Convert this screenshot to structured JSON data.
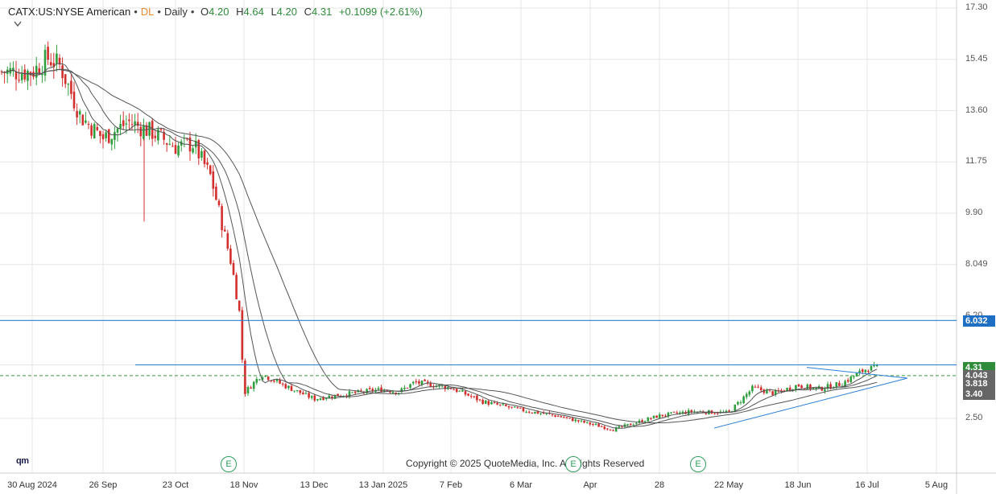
{
  "header": {
    "symbol": "CATX:US:NYSE American",
    "dl": "DL",
    "interval": "Daily",
    "open_label": "O",
    "open": "4.20",
    "high_label": "H",
    "high": "4.64",
    "low_label": "L",
    "low": "4.20",
    "close_label": "C",
    "close": "4.31",
    "change": "+0.1099 (+2.61%)"
  },
  "footer": {
    "copyright": "Copyright © 2025 QuoteMedia, Inc. All Rights Reserved",
    "logo": "qm",
    "earnings_marker": "E"
  },
  "colors": {
    "up": "#2e9e3e",
    "down": "#d32f2f",
    "ma": "#555555",
    "hline": "#2a7fd4",
    "dashed": "#3a9a3a",
    "grid": "#e6e6e6",
    "label_blue": "#1f6fc5",
    "label_green": "#2e8b3a",
    "label_gray": "#666666"
  },
  "chart_data": {
    "type": "candlestick",
    "title": "CATX:US:NYSE American",
    "interval": "Daily",
    "y_axis": {
      "ticks": [
        "17.30",
        "15.45",
        "13.60",
        "11.75",
        "9.90",
        "8.049",
        "6.20",
        "4.31",
        "3.40",
        "2.50"
      ],
      "ylim": [
        1.5,
        17.35
      ]
    },
    "x_axis": {
      "ticks": [
        "30 Aug 2024",
        "26 Sep",
        "23 Oct",
        "18 Nov",
        "13 Dec",
        "13 Jan 2025",
        "7 Feb",
        "6 Mar",
        "Apr",
        "28",
        "22 May",
        "18 Jun",
        "16 Jul",
        "5 Aug"
      ]
    },
    "price_series": {
      "name": "CATX",
      "keypoints": [
        [
          "30 Aug 2024",
          15.0
        ],
        [
          "5 Sep",
          15.5
        ],
        [
          "15 Sep",
          15.2
        ],
        [
          "22 Sep",
          13.4
        ],
        [
          "26 Sep",
          12.6
        ],
        [
          "5 Oct",
          13.2
        ],
        [
          "15 Oct",
          12.8
        ],
        [
          "23 Oct",
          12.3
        ],
        [
          "30 Oct",
          12.4
        ],
        [
          "5 Nov",
          11.2
        ],
        [
          "12 Nov",
          8.0
        ],
        [
          "15 Nov",
          6.2
        ],
        [
          "18 Nov",
          3.4
        ],
        [
          "22 Nov",
          4.1
        ],
        [
          "1 Dec",
          3.7
        ],
        [
          "13 Dec",
          3.2
        ],
        [
          "20 Dec",
          3.3
        ],
        [
          "13 Jan 2025",
          3.55
        ],
        [
          "20 Jan",
          3.45
        ],
        [
          "27 Jan",
          3.8
        ],
        [
          "7 Feb",
          3.6
        ],
        [
          "20 Feb",
          3.1
        ],
        [
          "6 Mar",
          2.8
        ],
        [
          "20 Mar",
          2.6
        ],
        [
          "Apr",
          2.3
        ],
        [
          "15 Apr",
          2.1
        ],
        [
          "28",
          2.6
        ],
        [
          "10 May",
          2.75
        ],
        [
          "22 May",
          2.7
        ],
        [
          "1 Jun",
          3.6
        ],
        [
          "10 Jun",
          3.4
        ],
        [
          "18 Jun",
          3.7
        ],
        [
          "25 Jun",
          3.55
        ],
        [
          "5 Jul",
          3.75
        ],
        [
          "16 Jul",
          4.31
        ]
      ]
    },
    "moving_averages": [
      "MA short",
      "MA medium",
      "MA long"
    ],
    "horizontal_lines": [
      {
        "value": 6.032,
        "label": "6.032",
        "color": "blue"
      },
      {
        "value": 4.31,
        "label": "4.31",
        "color": "blue"
      }
    ],
    "dashed_line": {
      "value": 4.043
    },
    "price_labels": [
      {
        "text": "6.032",
        "value": 6.032,
        "color": "blue"
      },
      {
        "text": "4.31",
        "value": 4.31,
        "color": "green"
      },
      {
        "text": "4.043",
        "value": 4.043,
        "color": "gray"
      },
      {
        "text": "3.818",
        "value": 3.818,
        "color": "gray"
      },
      {
        "text": "3.40",
        "value": 3.4,
        "color": "gray"
      }
    ],
    "trendlines": [
      "symmetrical triangle Jun–Jul 2025"
    ],
    "earnings_markers": [
      "23 Oct",
      "Apr",
      "22 May"
    ],
    "grid": true
  }
}
